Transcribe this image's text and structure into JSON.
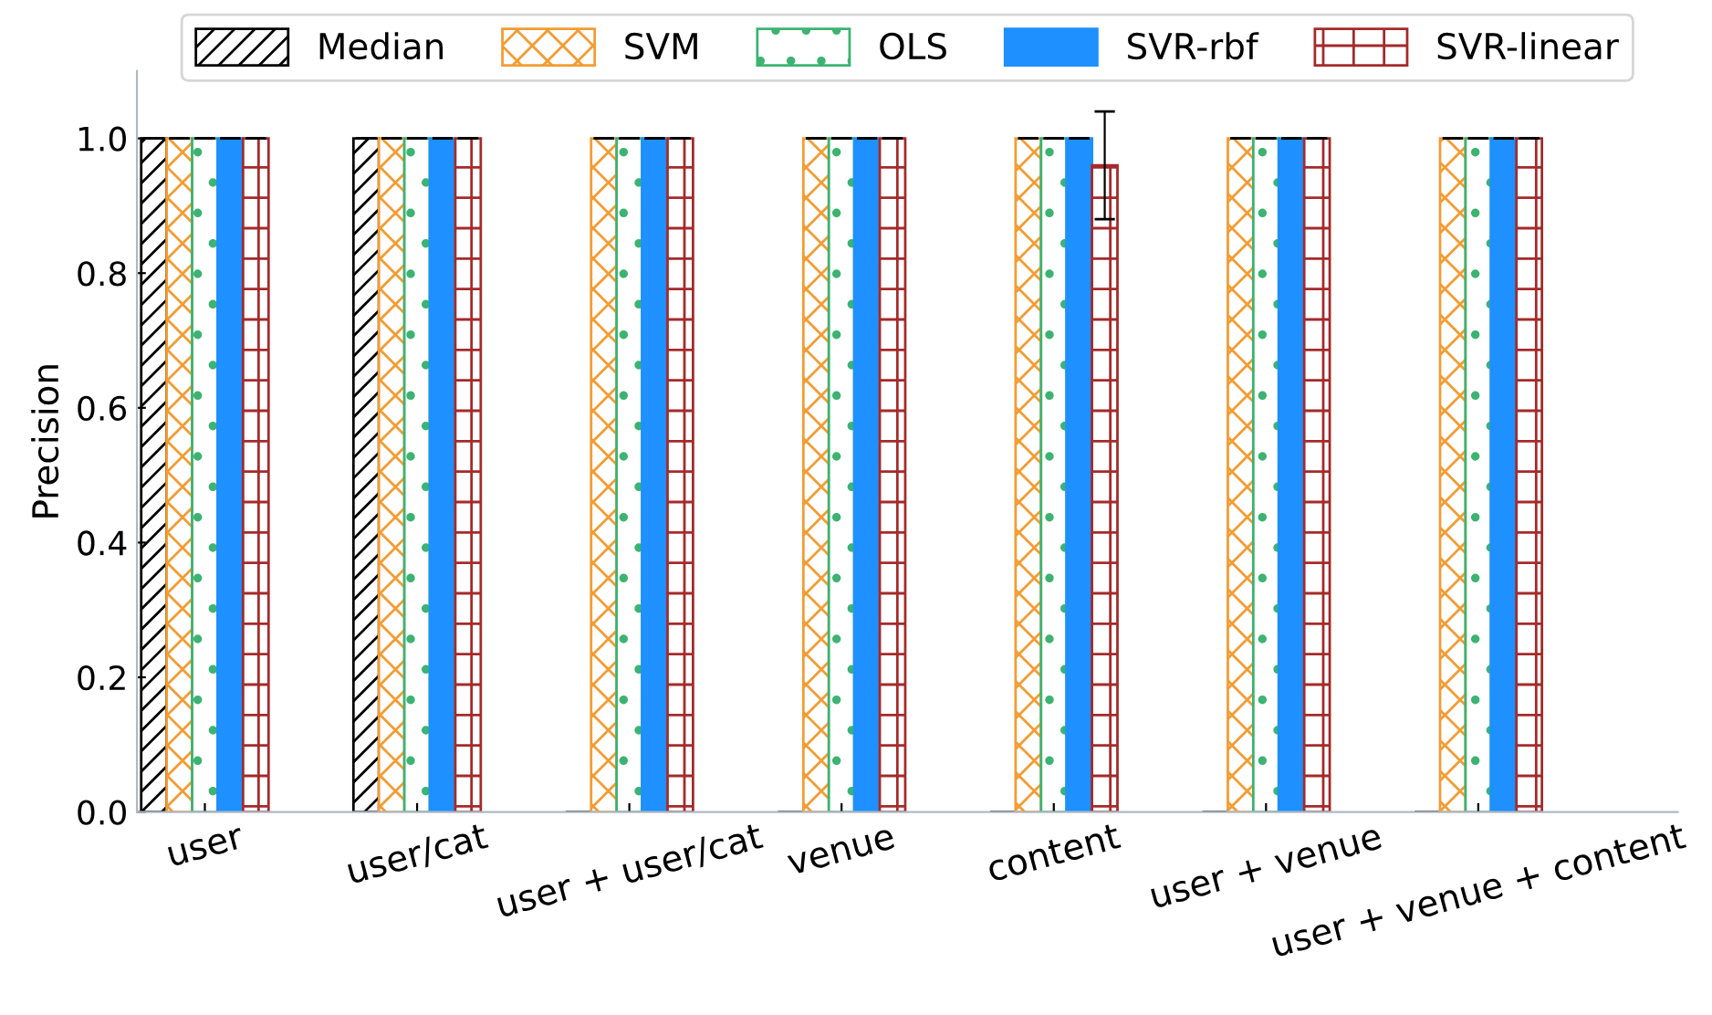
{
  "chart_data": {
    "type": "bar",
    "ylabel": "Precision",
    "categories": [
      "user",
      "user/cat",
      "user + user/cat",
      "venue",
      "content",
      "user + venue",
      "user + venue + content"
    ],
    "series": [
      {
        "name": "Median",
        "color": "#000000",
        "values": [
          1.0,
          1.0,
          0,
          0,
          0,
          0,
          0
        ],
        "errors": [
          0,
          0,
          null,
          null,
          null,
          null,
          null
        ]
      },
      {
        "name": "SVM",
        "color": "#f39c33",
        "values": [
          1.0,
          1.0,
          1.0,
          1.0,
          1.0,
          1.0,
          1.0
        ],
        "errors": [
          0,
          0,
          0,
          0,
          0,
          0,
          0
        ]
      },
      {
        "name": "OLS",
        "color": "#3cb371",
        "values": [
          1.0,
          1.0,
          1.0,
          1.0,
          1.0,
          1.0,
          1.0
        ],
        "errors": [
          0,
          0,
          0,
          0,
          0,
          0,
          0
        ]
      },
      {
        "name": "SVR-rbf",
        "color": "#1e90ff",
        "values": [
          1.0,
          1.0,
          1.0,
          1.0,
          1.0,
          1.0,
          1.0
        ],
        "errors": [
          0,
          0,
          0,
          0,
          0,
          0,
          0
        ]
      },
      {
        "name": "SVR-linear",
        "color": "#a52a2a",
        "values": [
          1.0,
          1.0,
          1.0,
          1.0,
          0.96,
          1.0,
          1.0
        ],
        "errors": [
          0,
          0,
          0,
          0,
          0.08,
          0,
          0
        ]
      }
    ],
    "ylim": [
      0,
      1.1
    ],
    "yticks": [
      {
        "value": 0,
        "label": "0.0"
      },
      0.2,
      0.4,
      0.6,
      0.8,
      {
        "value": 1,
        "label": "1.0"
      }
    ],
    "legend": "top",
    "grid": false
  }
}
